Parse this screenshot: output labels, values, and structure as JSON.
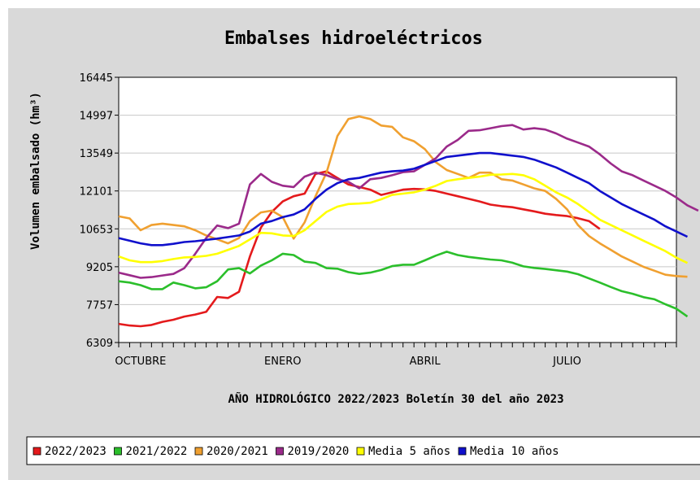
{
  "chart_data": {
    "type": "line",
    "title": "Embalses hidroeléctricos",
    "xlabel": "AÑO HIDROLÓGICO 2022/2023 Boletín 30 del año 2023",
    "ylabel": "Volumen embalsado (hm³)",
    "ylim": [
      6309,
      16445
    ],
    "yticks": [
      "6309",
      "7757",
      "9205",
      "10653",
      "12101",
      "13549",
      "14997",
      "16445"
    ],
    "xlim": [
      1,
      52
    ],
    "xticks": [
      {
        "label": "OCTUBRE",
        "week": 3
      },
      {
        "label": "ENERO",
        "week": 16
      },
      {
        "label": "ABRIL",
        "week": 29
      },
      {
        "label": "JULIO",
        "week": 42
      }
    ],
    "grid": true,
    "legend_position": "bottom",
    "series": [
      {
        "name": "2022/2023",
        "color": "#e41a1c",
        "values": [
          7020,
          6960,
          6930,
          6980,
          7100,
          7180,
          7300,
          7380,
          7480,
          8050,
          8010,
          8250,
          9600,
          10700,
          11300,
          11700,
          11900,
          12000,
          12750,
          12850,
          12600,
          12350,
          12250,
          12150,
          11950,
          12050,
          12150,
          12180,
          12160,
          12100,
          12000,
          11900,
          11800,
          11700,
          11580,
          11520,
          11480,
          11400,
          11320,
          11230,
          11180,
          11140,
          11060,
          10950,
          10650
        ]
      },
      {
        "name": "2021/2022",
        "color": "#2bbf2b",
        "values": [
          8650,
          8600,
          8500,
          8350,
          8350,
          8600,
          8500,
          8380,
          8420,
          8650,
          9100,
          9150,
          8950,
          9250,
          9450,
          9700,
          9650,
          9400,
          9350,
          9150,
          9130,
          9000,
          8930,
          8980,
          9080,
          9230,
          9280,
          9280,
          9450,
          9630,
          9780,
          9650,
          9580,
          9530,
          9480,
          9450,
          9360,
          9220,
          9160,
          9120,
          9070,
          9020,
          8920,
          8760,
          8600,
          8430,
          8270,
          8170,
          8040,
          7960,
          7770,
          7600,
          7300
        ]
      },
      {
        "name": "2020/2021",
        "color": "#f0a030",
        "values": [
          11130,
          11050,
          10600,
          10800,
          10850,
          10800,
          10750,
          10600,
          10400,
          10250,
          10100,
          10300,
          10950,
          11280,
          11350,
          11100,
          10280,
          10900,
          11900,
          12800,
          14200,
          14850,
          14950,
          14850,
          14600,
          14550,
          14150,
          14000,
          13700,
          13200,
          12900,
          12750,
          12600,
          12800,
          12800,
          12550,
          12500,
          12350,
          12200,
          12100,
          11800,
          11400,
          10800,
          10380,
          10100,
          9850,
          9600,
          9400,
          9200,
          9050,
          8900,
          8850,
          8820
        ]
      },
      {
        "name": "2019/2020",
        "color": "#9b2a8a",
        "values": [
          8980,
          8880,
          8780,
          8810,
          8870,
          8930,
          9150,
          9700,
          10300,
          10780,
          10680,
          10850,
          12350,
          12750,
          12450,
          12300,
          12250,
          12650,
          12800,
          12700,
          12550,
          12450,
          12200,
          12550,
          12600,
          12700,
          12820,
          12850,
          13100,
          13350,
          13800,
          14050,
          14400,
          14420,
          14500,
          14580,
          14620,
          14450,
          14500,
          14450,
          14300,
          14100,
          13950,
          13800,
          13500,
          13150,
          12850,
          12700,
          12500,
          12300,
          12100,
          11850,
          11550,
          11350
        ]
      },
      {
        "name": "Media 5 años",
        "color": "#ffff00",
        "values": [
          9600,
          9450,
          9380,
          9380,
          9420,
          9500,
          9560,
          9580,
          9620,
          9700,
          9850,
          10000,
          10250,
          10500,
          10480,
          10400,
          10380,
          10600,
          10950,
          11300,
          11500,
          11600,
          11620,
          11650,
          11780,
          11950,
          12000,
          12050,
          12150,
          12300,
          12480,
          12550,
          12600,
          12650,
          12720,
          12730,
          12750,
          12700,
          12550,
          12300,
          12050,
          11850,
          11600,
          11300,
          11000,
          10800,
          10600,
          10400,
          10200,
          10000,
          9800,
          9550,
          9350
        ]
      },
      {
        "name": "Media 10 años",
        "color": "#1010cc",
        "values": [
          10300,
          10200,
          10100,
          10030,
          10030,
          10080,
          10150,
          10180,
          10230,
          10280,
          10340,
          10400,
          10550,
          10850,
          10950,
          11100,
          11200,
          11400,
          11800,
          12150,
          12400,
          12550,
          12600,
          12700,
          12800,
          12850,
          12880,
          12950,
          13100,
          13250,
          13400,
          13450,
          13500,
          13550,
          13550,
          13500,
          13450,
          13400,
          13300,
          13150,
          13000,
          12800,
          12600,
          12400,
          12100,
          11850,
          11600,
          11400,
          11200,
          11000,
          10750,
          10550,
          10350
        ]
      }
    ]
  }
}
